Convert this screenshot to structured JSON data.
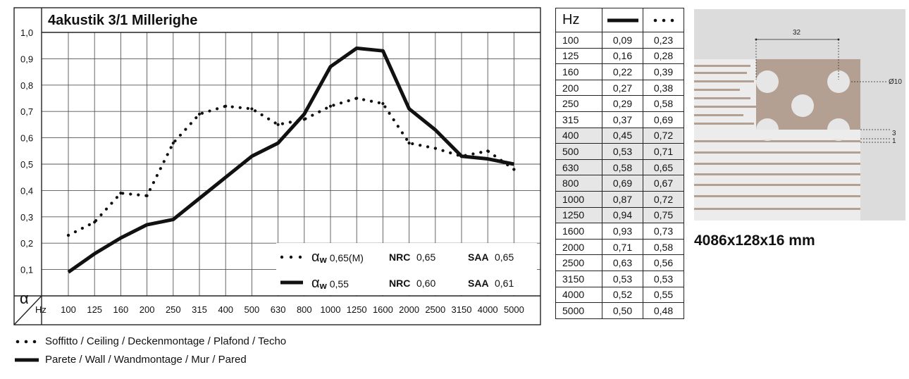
{
  "chart_data": {
    "type": "line",
    "title": "4akustik 3/1 Millerighe",
    "xlabel": "Hz",
    "ylabel": "α",
    "categories": [
      "100",
      "125",
      "160",
      "200",
      "250",
      "315",
      "400",
      "500",
      "630",
      "800",
      "1000",
      "1250",
      "1600",
      "2000",
      "2500",
      "3150",
      "4000",
      "5000"
    ],
    "y_ticks": [
      "0,1",
      "0,2",
      "0,3",
      "0,4",
      "0,5",
      "0,6",
      "0,7",
      "0,8",
      "0,9",
      "1,0"
    ],
    "ylim": [
      0,
      1.0
    ],
    "grid": true,
    "series": [
      {
        "key": "dotted",
        "values": [
          0.23,
          0.28,
          0.39,
          0.38,
          0.58,
          0.69,
          0.72,
          0.71,
          0.65,
          0.67,
          0.72,
          0.75,
          0.73,
          0.58,
          0.56,
          0.53,
          0.55,
          0.48
        ]
      },
      {
        "key": "solid",
        "values": [
          0.09,
          0.16,
          0.22,
          0.27,
          0.29,
          0.37,
          0.45,
          0.53,
          0.58,
          0.69,
          0.87,
          0.94,
          0.93,
          0.71,
          0.63,
          0.53,
          0.52,
          0.5
        ]
      }
    ],
    "ratings": [
      {
        "style": "dotted",
        "alpha_symbol": "α",
        "alpha_sub": "w",
        "alpha_w": "0,65(M)",
        "nrc_label": "NRC",
        "nrc": "0,65",
        "saa_label": "SAA",
        "saa": "0,65"
      },
      {
        "style": "solid",
        "alpha_symbol": "α",
        "alpha_sub": "w",
        "alpha_w": "0,55",
        "nrc_label": "NRC",
        "nrc": "0,60",
        "saa_label": "SAA",
        "saa": "0,61"
      }
    ]
  },
  "table": {
    "header": "Hz",
    "rows": [
      [
        "100",
        "0,09",
        "0,23"
      ],
      [
        "125",
        "0,16",
        "0,28"
      ],
      [
        "160",
        "0,22",
        "0,39"
      ],
      [
        "200",
        "0,27",
        "0,38"
      ],
      [
        "250",
        "0,29",
        "0,58"
      ],
      [
        "315",
        "0,37",
        "0,69"
      ],
      [
        "400",
        "0,45",
        "0,72"
      ],
      [
        "500",
        "0,53",
        "0,71"
      ],
      [
        "630",
        "0,58",
        "0,65"
      ],
      [
        "800",
        "0,69",
        "0,67"
      ],
      [
        "1000",
        "0,87",
        "0,72"
      ],
      [
        "1250",
        "0,94",
        "0,75"
      ],
      [
        "1600",
        "0,93",
        "0,73"
      ],
      [
        "2000",
        "0,71",
        "0,58"
      ],
      [
        "2500",
        "0,63",
        "0,56"
      ],
      [
        "3150",
        "0,53",
        "0,53"
      ],
      [
        "4000",
        "0,52",
        "0,55"
      ],
      [
        "5000",
        "0,50",
        "0,48"
      ]
    ],
    "shaded_from": 6,
    "shaded_to": 11
  },
  "drawing": {
    "dim_pitch": "32",
    "dim_hole": "Ø10",
    "dim_3": "3",
    "dim_1": "1",
    "panel_color": "#b3a093",
    "background_color": "#dcdcdc"
  },
  "size_label": "4086x128x16 mm",
  "legend": {
    "ceiling": "Soffitto / Ceiling / Deckenmontage / Plafond / Techo",
    "wall": "Parete / Wall / Wandmontage / Mur / Pared"
  }
}
